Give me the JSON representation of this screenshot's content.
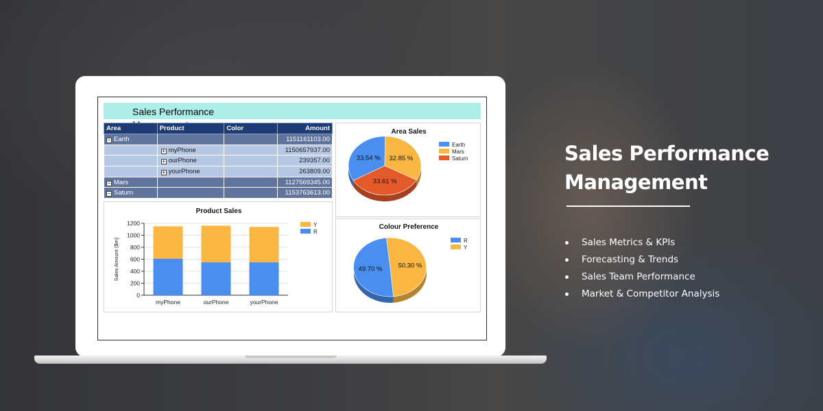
{
  "headline": {
    "line1": "Sales Performance",
    "line2": "Management"
  },
  "features": [
    "Sales Metrics & KPIs",
    "Forecasting & Trends",
    "Sales Team Performance",
    "Market & Competitor Analysis"
  ],
  "report": {
    "title": "Sales Performance Management",
    "table": {
      "columns": [
        "Area",
        "Product",
        "Color",
        "Amount"
      ],
      "rows": [
        {
          "type": "area",
          "area": "Earth",
          "product": "",
          "color": "",
          "amount": "1151161103.00"
        },
        {
          "type": "product",
          "area": "",
          "product": "myPhone",
          "color": "",
          "amount": "1150657937.00"
        },
        {
          "type": "product",
          "area": "",
          "product": "ourPhone",
          "color": "",
          "amount": "239357.00"
        },
        {
          "type": "product",
          "area": "",
          "product": "yourPhone",
          "color": "",
          "amount": "263809.00"
        },
        {
          "type": "area",
          "area": "Mars",
          "product": "",
          "color": "",
          "amount": "1127569345.00"
        },
        {
          "type": "area",
          "area": "Saturn",
          "product": "",
          "color": "",
          "amount": "1153763613.00"
        }
      ]
    }
  },
  "colors": {
    "blue": "#4a8ef0",
    "orange": "#f9b642",
    "red": "#e55a2b",
    "header_band": "#aeeee8",
    "table_header": "#1f3b73"
  },
  "chart_data": [
    {
      "type": "bar",
      "stacked": true,
      "title": "Product Sales",
      "ylabel": "Sales Amount ($m)",
      "categories": [
        "myPhone",
        "ourPhone",
        "yourPhone"
      ],
      "series": [
        {
          "name": "R",
          "color": "#4a8ef0",
          "values": [
            610,
            550,
            550
          ]
        },
        {
          "name": "Y",
          "color": "#f9b642",
          "values": [
            540,
            610,
            590
          ]
        }
      ],
      "ylim": [
        0,
        1200
      ],
      "yticks": [
        0,
        200,
        400,
        600,
        800,
        1000,
        1200
      ],
      "legend_order": [
        "Y",
        "R"
      ],
      "legend": "top-right",
      "grid": true
    },
    {
      "type": "pie",
      "title": "Area Sales",
      "slices": [
        {
          "name": "Earth",
          "value": 33.54,
          "label": "33.54 %",
          "color": "#4a8ef0"
        },
        {
          "name": "Mars",
          "value": 32.85,
          "label": "32.85 %",
          "color": "#f9b642"
        },
        {
          "name": "Saturn",
          "value": 33.61,
          "label": "33.61 %",
          "color": "#e55a2b"
        }
      ],
      "legend": "top-right"
    },
    {
      "type": "pie",
      "title": "Colour Preference",
      "slices": [
        {
          "name": "R",
          "value": 49.7,
          "label": "49.70 %",
          "color": "#4a8ef0"
        },
        {
          "name": "Y",
          "value": 50.3,
          "label": "50.30 %",
          "color": "#f9b642"
        }
      ],
      "legend": "top-right"
    }
  ]
}
